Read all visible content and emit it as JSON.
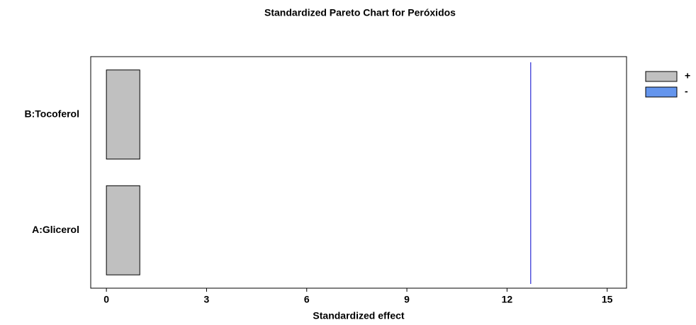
{
  "chart_data": {
    "type": "bar",
    "orientation": "horizontal",
    "title": "Standardized Pareto Chart for Peróxidos",
    "x_label": "Standardized effect",
    "categories": [
      "B:Tocoferol",
      "A:Glicerol"
    ],
    "series": [
      {
        "name": "+",
        "color": "#c0c0c0",
        "values": [
          1.0,
          1.0
        ]
      },
      {
        "name": "-",
        "color": "#6495ed",
        "values": [
          null,
          null
        ]
      }
    ],
    "reference_line": {
      "value": 12.71,
      "color": "#0000cd"
    },
    "xlim": [
      -0.47,
      15.58
    ],
    "xticks": [
      0,
      3,
      6,
      9,
      12,
      15
    ],
    "legend": "right"
  }
}
